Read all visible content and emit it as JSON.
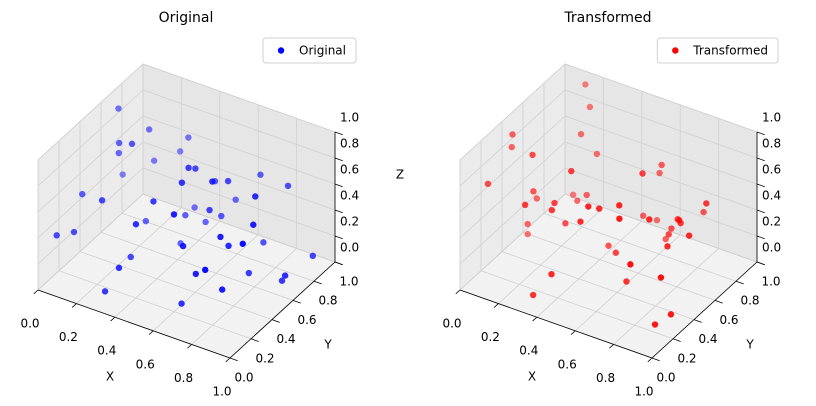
{
  "chart_data": [
    {
      "type": "scatter3d",
      "title": "Original",
      "series": [
        {
          "name": "Original",
          "color": "#0000ff",
          "x": [
            0.12,
            0.85,
            0.43,
            0.67,
            0.05,
            0.91,
            0.28,
            0.56,
            0.74,
            0.33,
            0.18,
            0.62,
            0.95,
            0.4,
            0.08,
            0.79,
            0.51,
            0.23,
            0.88,
            0.36,
            0.69,
            0.14,
            0.58,
            0.97,
            0.47,
            0.02,
            0.81,
            0.3,
            0.64,
            0.26,
            0.72,
            0.1,
            0.53,
            0.86,
            0.39,
            0.6,
            0.21,
            0.93,
            0.45,
            0.77,
            0.16,
            0.49,
            0.83,
            0.34,
            0.7,
            0.07,
            0.55,
            0.99,
            0.25,
            0.65
          ],
          "y": [
            0.55,
            0.2,
            0.81,
            0.07,
            0.33,
            0.66,
            0.92,
            0.41,
            0.15,
            0.28,
            0.73,
            0.5,
            0.88,
            0.04,
            0.62,
            0.37,
            0.95,
            0.19,
            0.46,
            0.7,
            0.12,
            0.85,
            0.31,
            0.58,
            0.24,
            0.77,
            0.9,
            0.09,
            0.64,
            0.42,
            0.83,
            0.16,
            0.53,
            0.02,
            0.69,
            0.27,
            0.97,
            0.35,
            0.11,
            0.6,
            0.48,
            0.79,
            0.22,
            0.87,
            0.38,
            0.05,
            0.74,
            0.14,
            0.57,
            0.93
          ],
          "z": [
            0.71,
            0.3,
            0.15,
            0.88,
            0.52,
            0.06,
            0.64,
            0.93,
            0.4,
            0.22,
            0.79,
            0.57,
            0.11,
            0.35,
            0.98,
            0.48,
            0.26,
            0.67,
            0.84,
            0.03,
            0.61,
            0.44,
            0.9,
            0.19,
            0.75,
            0.33,
            0.56,
            0.08,
            0.7,
            0.95,
            0.13,
            0.38,
            0.82,
            0.59,
            0.27,
            0.01,
            0.46,
            0.73,
            0.66,
            0.09,
            0.86,
            0.51,
            0.68,
            0.17,
            0.92,
            0.42,
            0.31,
            0.77,
            0.24,
            0.54
          ]
        }
      ],
      "xlim": [
        0,
        1
      ],
      "ylim": [
        0,
        1
      ],
      "zlim": [
        0,
        1
      ],
      "xticks": [
        {
          "value": 0,
          "label": "0.0"
        },
        0.2,
        0.4,
        0.6,
        0.8,
        {
          "value": 1,
          "label": "1.0"
        }
      ],
      "yticks": [
        {
          "value": 0,
          "label": "0.0"
        },
        0.2,
        0.4,
        0.6,
        0.8,
        {
          "value": 1,
          "label": "1.0"
        }
      ],
      "zticks": [
        {
          "value": 0,
          "label": "0.0"
        },
        0.2,
        0.4,
        0.6,
        0.8,
        {
          "value": 1,
          "label": "1.0"
        }
      ],
      "x_label": "X",
      "y_label": "Y",
      "z_label": "Z",
      "legend": "upper right",
      "grid": true
    },
    {
      "type": "scatter3d",
      "title": "Transformed",
      "series": [
        {
          "name": "Transformed",
          "color": "#ff0000",
          "x": [
            0.31,
            0.77,
            0.09,
            0.58,
            0.94,
            0.22,
            0.46,
            0.83,
            0.15,
            0.67,
            0.38,
            0.71,
            0.04,
            0.52,
            0.89,
            0.27,
            0.63,
            0.11,
            0.8,
            0.44,
            0.97,
            0.19,
            0.56,
            0.35,
            0.74,
            0.06,
            0.49,
            0.86,
            0.25,
            0.61,
            0.13,
            0.92,
            0.41,
            0.68,
            0.29,
            0.84,
            0.03,
            0.54,
            0.76,
            0.18,
            0.65,
            0.37,
            0.9,
            0.23,
            0.5,
            0.81,
            0.08,
            0.59,
            0.33,
            0.72
          ],
          "y": [
            0.64,
            0.11,
            0.48,
            0.86,
            0.29,
            0.75,
            0.03,
            0.57,
            0.92,
            0.36,
            0.18,
            0.69,
            0.42,
            0.95,
            0.23,
            0.81,
            0.07,
            0.53,
            0.34,
            0.61,
            0.14,
            0.89,
            0.46,
            0.26,
            0.72,
            0.39,
            0.98,
            0.05,
            0.66,
            0.21,
            0.84,
            0.5,
            0.31,
            0.77,
            0.09,
            0.44,
            0.59,
            0.16,
            0.93,
            0.37,
            0.55,
            0.02,
            0.7,
            0.27,
            0.83,
            0.62,
            0.12,
            0.88,
            0.4,
            0.2
          ],
          "z": [
            0.42,
            0.87,
            0.2,
            0.63,
            0.09,
            0.76,
            0.34,
            0.55,
            0.98,
            0.15,
            0.68,
            0.29,
            0.81,
            0.47,
            0.03,
            0.59,
            0.92,
            0.37,
            0.71,
            0.12,
            0.5,
            0.85,
            0.24,
            0.66,
            0.4,
            0.94,
            0.07,
            0.61,
            0.33,
            0.79,
            0.18,
            0.53,
            0.9,
            0.26,
            0.74,
            0.45,
            0.01,
            0.69,
            0.31,
            0.58,
            0.83,
            0.14,
            0.62,
            0.96,
            0.22,
            0.48,
            0.77,
            0.05,
            0.39,
            0.88
          ]
        }
      ],
      "xlim": [
        0,
        1
      ],
      "ylim": [
        0,
        1
      ],
      "zlim": [
        0,
        1
      ],
      "xticks": [
        {
          "value": 0,
          "label": "0.0"
        },
        0.2,
        0.4,
        0.6,
        0.8,
        {
          "value": 1,
          "label": "1.0"
        }
      ],
      "yticks": [
        {
          "value": 0,
          "label": "0.0"
        },
        0.2,
        0.4,
        0.6,
        0.8,
        {
          "value": 1,
          "label": "1.0"
        }
      ],
      "zticks": [
        {
          "value": 0,
          "label": "0.0"
        },
        0.2,
        0.4,
        0.6,
        0.8,
        {
          "value": 1,
          "label": "1.0"
        }
      ],
      "x_label": "X",
      "y_label": "Y",
      "legend": "upper right",
      "grid": true
    }
  ]
}
